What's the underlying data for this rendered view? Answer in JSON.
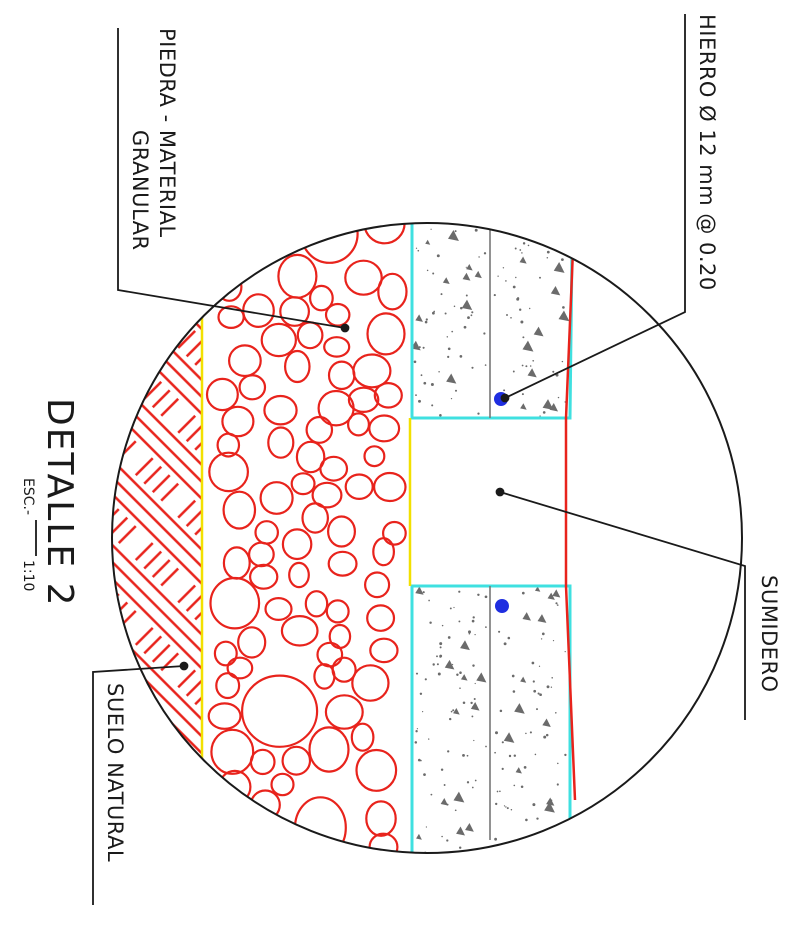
{
  "drawing": {
    "labels": {
      "rebar": "HIERRO Ø 12 mm @ 0.20",
      "stone_line1": "PIEDRA - MATERIAL",
      "stone_line2": "GRANULAR",
      "drain": "SUMIDERO",
      "soil": "SUELO NATURAL"
    },
    "title": "DETALLE  2",
    "scale_prefix": "ESC.-",
    "scale_value": "1:10"
  },
  "colors": {
    "outline": "#1a1a1a",
    "stone": "#e8231c",
    "concrete_edge": "#3fe0e0",
    "gravel_edge": "#f2e000",
    "rebar": "#1f2ee0",
    "speckle": "#6b6b6b"
  }
}
